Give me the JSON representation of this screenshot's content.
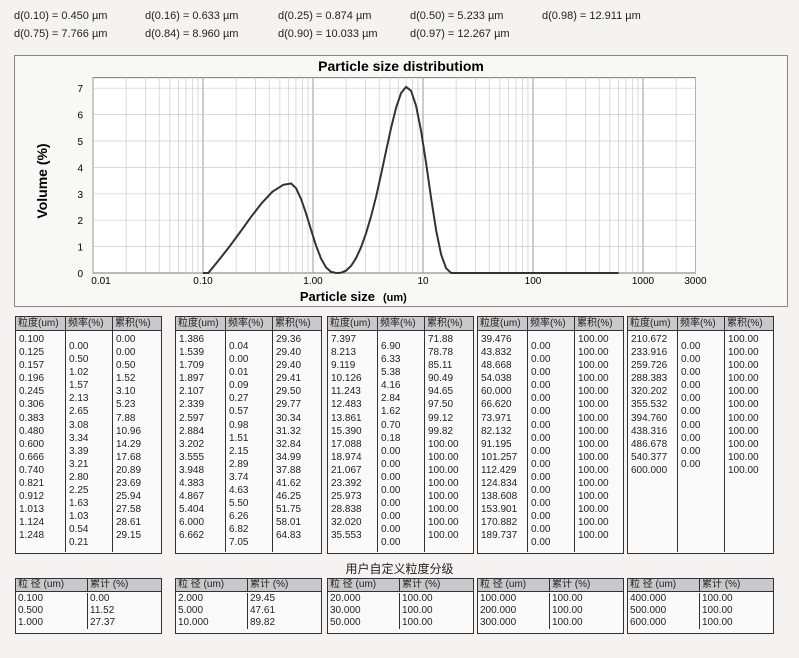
{
  "dvalues": [
    [
      "d(0.10) = 0.450  µm",
      "d(0.16) = 0.633  µm",
      "d(0.25) = 0.874  µm",
      "d(0.50) = 5.233  µm",
      "d(0.98) = 12.911  µm"
    ],
    [
      "d(0.75) = 7.766  µm",
      "d(0.84) = 8.960  µm",
      "d(0.90) = 10.033  µm",
      "d(0.97) = 12.267  µm"
    ]
  ],
  "chart_data": {
    "type": "line",
    "title": "Particle size distributiom",
    "xlabel": "Particle size",
    "xlabel_unit": "(um)",
    "ylabel": "Volume (%)",
    "xscale": "log",
    "xlim": [
      0.01,
      3000
    ],
    "ylim": [
      0,
      7
    ],
    "xticks": [
      "0.01",
      "0.10",
      "1.00",
      "10",
      "100",
      "1000",
      "3000"
    ],
    "yticks": [
      "0",
      "1",
      "2",
      "3",
      "4",
      "5",
      "6",
      "7"
    ],
    "grid": true
  },
  "headers": [
    "粒度(um)",
    "频率(%)",
    "累积(%)"
  ],
  "tables": [
    {
      "size": [
        "0.100",
        "0.125",
        "0.157",
        "0.196",
        "0.245",
        "0.306",
        "0.383",
        "0.480",
        "0.600",
        "0.666",
        "0.740",
        "0.821",
        "0.912",
        "1.013",
        "1.124",
        "1.248"
      ],
      "freq": [
        "0.00",
        "0.50",
        "1.02",
        "1.57",
        "2.13",
        "2.65",
        "3.08",
        "3.34",
        "3.39",
        "3.21",
        "2.80",
        "2.25",
        "1.63",
        "1.03",
        "0.54",
        "0.21"
      ],
      "cum": [
        "0.00",
        "0.00",
        "0.50",
        "1.52",
        "3.10",
        "5.23",
        "7.88",
        "10.96",
        "14.29",
        "17.68",
        "20.89",
        "23.69",
        "25.94",
        "27.58",
        "28.61",
        "29.15"
      ]
    },
    {
      "size": [
        "1.386",
        "1.539",
        "1.709",
        "1.897",
        "2.107",
        "2.339",
        "2.597",
        "2.884",
        "3.202",
        "3.555",
        "3.948",
        "4.383",
        "4.867",
        "5.404",
        "6.000",
        "6.662"
      ],
      "freq": [
        "0.04",
        "0.00",
        "0.01",
        "0.09",
        "0.27",
        "0.57",
        "0.98",
        "1.51",
        "2.15",
        "2.89",
        "3.74",
        "4.63",
        "5.50",
        "6.26",
        "6.82",
        "7.05"
      ],
      "cum": [
        "29.36",
        "29.40",
        "29.40",
        "29.41",
        "29.50",
        "29.77",
        "30.34",
        "31.32",
        "32.84",
        "34.99",
        "37.88",
        "41.62",
        "46.25",
        "51.75",
        "58.01",
        "64.83"
      ]
    },
    {
      "size": [
        "7.397",
        "8.213",
        "9.119",
        "10.126",
        "11.243",
        "12.483",
        "13.861",
        "15.390",
        "17.088",
        "18.974",
        "21.067",
        "23.392",
        "25.973",
        "28.838",
        "32.020",
        "35.553"
      ],
      "freq": [
        "6.90",
        "6.33",
        "5.38",
        "4.16",
        "2.84",
        "1.62",
        "0.70",
        "0.18",
        "0.00",
        "0.00",
        "0.00",
        "0.00",
        "0.00",
        "0.00",
        "0.00",
        "0.00"
      ],
      "cum": [
        "71.88",
        "78.78",
        "85.11",
        "90.49",
        "94.65",
        "97.50",
        "99.12",
        "99.82",
        "100.00",
        "100.00",
        "100.00",
        "100.00",
        "100.00",
        "100.00",
        "100.00",
        "100.00"
      ]
    },
    {
      "size": [
        "39.476",
        "43.832",
        "48.668",
        "54.038",
        "60.000",
        "66.620",
        "73.971",
        "82.132",
        "91.195",
        "101.257",
        "112.429",
        "124.834",
        "138.608",
        "153.901",
        "170.882",
        "189.737"
      ],
      "freq": [
        "0.00",
        "0.00",
        "0.00",
        "0.00",
        "0.00",
        "0.00",
        "0.00",
        "0.00",
        "0.00",
        "0.00",
        "0.00",
        "0.00",
        "0.00",
        "0.00",
        "0.00",
        "0.00"
      ],
      "cum": [
        "100.00",
        "100.00",
        "100.00",
        "100.00",
        "100.00",
        "100.00",
        "100.00",
        "100.00",
        "100.00",
        "100.00",
        "100.00",
        "100.00",
        "100.00",
        "100.00",
        "100.00",
        "100.00"
      ]
    },
    {
      "size": [
        "210.672",
        "233.916",
        "259.726",
        "288.383",
        "320.202",
        "355.532",
        "394.760",
        "438.316",
        "486.678",
        "540.377",
        "600.000"
      ],
      "freq": [
        "0.00",
        "0.00",
        "0.00",
        "0.00",
        "0.00",
        "0.00",
        "0.00",
        "0.00",
        "0.00",
        "0.00"
      ],
      "cum": [
        "100.00",
        "100.00",
        "100.00",
        "100.00",
        "100.00",
        "100.00",
        "100.00",
        "100.00",
        "100.00",
        "100.00",
        "100.00"
      ]
    }
  ],
  "custom_title": "用户自定义粒度分级",
  "custom_headers": [
    "粒 径 (um)",
    "累计 (%)"
  ],
  "custom_tables": [
    [
      [
        "0.100",
        "0.00"
      ],
      [
        "0.500",
        "11.52"
      ],
      [
        "1.000",
        "27.37"
      ]
    ],
    [
      [
        "2.000",
        "29.45"
      ],
      [
        "5.000",
        "47.61"
      ],
      [
        "10.000",
        "89.82"
      ]
    ],
    [
      [
        "20.000",
        "100.00"
      ],
      [
        "30.000",
        "100.00"
      ],
      [
        "50.000",
        "100.00"
      ]
    ],
    [
      [
        "100.000",
        "100.00"
      ],
      [
        "200.000",
        "100.00"
      ],
      [
        "300.000",
        "100.00"
      ]
    ],
    [
      [
        "400.000",
        "100.00"
      ],
      [
        "500.000",
        "100.00"
      ],
      [
        "600.000",
        "100.00"
      ]
    ]
  ]
}
